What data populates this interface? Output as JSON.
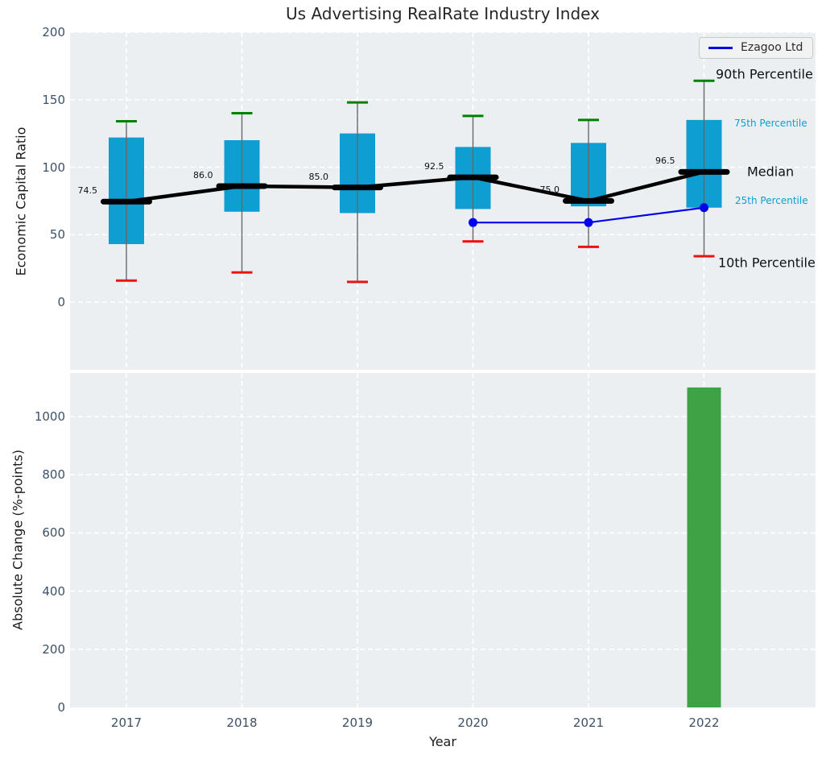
{
  "title": "Us Advertising RealRate Industry Index",
  "axis": {
    "top_ylabel": "Economic Capital Ratio",
    "bottom_ylabel": "Absolute Change (%-points)",
    "xlabel": "Year"
  },
  "legend": {
    "label": "Ezagoo Ltd",
    "color": "#0000ee"
  },
  "annotations": {
    "p90": "90th Percentile",
    "p75": "75th Percentile",
    "median": "Median",
    "p25": "25th Percentile",
    "p10": "10th Percentile"
  },
  "colors": {
    "axes_bg": "#eceff1",
    "grid": "#ffffff",
    "box": "#0e9ed2",
    "whisker": "#666666",
    "cap_high": "#008000",
    "cap_low": "#ee1111",
    "median": "#000000",
    "company_line": "#0000ee",
    "bar": "#3fa244",
    "tick": "#3d5166"
  },
  "chart_data": [
    {
      "type": "boxplot+line",
      "title": "Us Advertising RealRate Industry Index",
      "xlabel": "Year",
      "ylabel": "Economic Capital Ratio",
      "categories": [
        2017,
        2018,
        2019,
        2020,
        2021,
        2022
      ],
      "ylim": [
        -50,
        200
      ],
      "yticks": [
        0,
        50,
        100,
        150,
        200
      ],
      "grid": true,
      "legend_position": "upper right",
      "series": [
        {
          "name": "90th Percentile",
          "values": [
            134,
            140,
            148,
            138,
            135,
            164
          ]
        },
        {
          "name": "75th Percentile",
          "values": [
            122,
            120,
            125,
            115,
            118,
            135
          ]
        },
        {
          "name": "Median",
          "values": [
            74.5,
            86.0,
            85.0,
            92.5,
            75.0,
            96.5
          ]
        },
        {
          "name": "25th Percentile",
          "values": [
            43,
            67,
            66,
            69,
            71,
            70
          ]
        },
        {
          "name": "10th Percentile",
          "values": [
            16,
            22,
            15,
            45,
            41,
            34
          ]
        },
        {
          "name": "Ezagoo Ltd",
          "x": [
            2020,
            2021,
            2022
          ],
          "values": [
            59,
            59,
            70
          ]
        }
      ],
      "median_labels": [
        "74.5",
        "86.0",
        "85.0",
        "92.5",
        "75.0",
        "96.5"
      ]
    },
    {
      "type": "bar",
      "xlabel": "Year",
      "ylabel": "Absolute Change (%-points)",
      "categories": [
        2017,
        2018,
        2019,
        2020,
        2021,
        2022
      ],
      "values": [
        null,
        null,
        null,
        null,
        null,
        1100
      ],
      "ylim": [
        0,
        1150
      ],
      "yticks": [
        0,
        200,
        400,
        600,
        800,
        1000
      ],
      "grid": true
    }
  ]
}
